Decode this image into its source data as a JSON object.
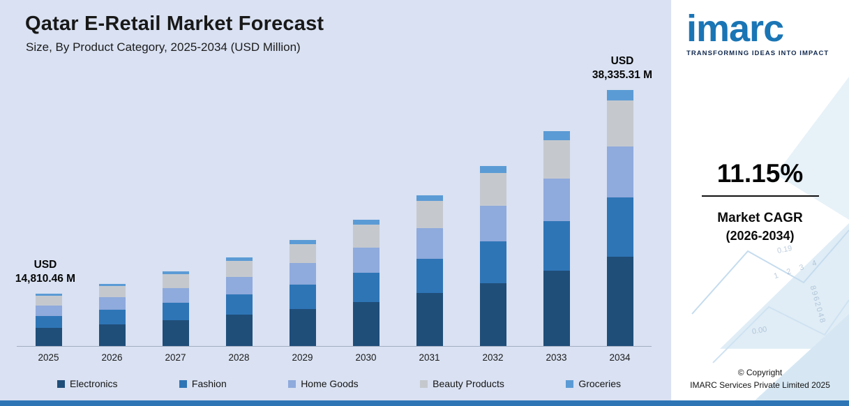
{
  "chart": {
    "title": "Qatar E-Retail Market Forecast",
    "subtitle": "Size, By Product Category, 2025-2034 (USD Million)",
    "annotations": {
      "first": {
        "line1": "USD",
        "line2": "14,810.46 M"
      },
      "last": {
        "line1": "USD",
        "line2": "38,335.31 M"
      }
    }
  },
  "chart_data": {
    "type": "bar",
    "stacked": true,
    "title": "Qatar E-Retail Market Forecast",
    "subtitle": "Size, By Product Category, 2025-2034 (USD Million)",
    "unit": "USD Million",
    "categories": [
      "2025",
      "2026",
      "2027",
      "2028",
      "2029",
      "2030",
      "2031",
      "2032",
      "2033",
      "2034"
    ],
    "series": [
      {
        "name": "Electronics",
        "color": "#1f4e79",
        "values": [
          5183.66,
          5761.64,
          6404.06,
          7118.11,
          7911.79,
          8793.95,
          9774.47,
          10864.4,
          12075.78,
          13417.36
        ]
      },
      {
        "name": "Fashion",
        "color": "#2e75b6",
        "values": [
          3406.41,
          3786.22,
          4208.38,
          4677.62,
          5199.17,
          5778.88,
          6423.23,
          7139.46,
          7935.51,
          8817.12
        ]
      },
      {
        "name": "Home Goods",
        "color": "#8faadc",
        "values": [
          2962.09,
          3292.37,
          3659.46,
          4067.49,
          4521.02,
          5025.11,
          5585.41,
          6208.23,
          6900.44,
          7667.06
        ]
      },
      {
        "name": "Beauty Products",
        "color": "#c5c9ce",
        "values": [
          2665.88,
          2963.13,
          3293.52,
          3660.74,
          4068.92,
          4522.6,
          5026.87,
          5587.41,
          6210.4,
          6900.36
        ]
      },
      {
        "name": "Groceries",
        "color": "#5b9bd5",
        "values": [
          592.42,
          658.47,
          731.89,
          813.5,
          904.2,
          1005.02,
          1117.08,
          1241.65,
          1380.09,
          1533.41
        ]
      }
    ],
    "totals": [
      14810.46,
      16461.83,
      18297.31,
      20337.46,
      22605.1,
      25125.56,
      27927.06,
      31041.15,
      34502.22,
      38335.31
    ],
    "labeled_totals": {
      "2025": "USD 14,810.46 M",
      "2034": "USD 38,335.31 M"
    },
    "xlabel": "",
    "ylabel": "USD Million",
    "ylim": [
      0,
      40000
    ],
    "grid": false,
    "legend_position": "bottom"
  },
  "side_panel": {
    "logo_text": "imarc",
    "tagline": "TRANSFORMING IDEAS INTO IMPACT",
    "cagr_value": "11.15%",
    "cagr_label_line1": "Market CAGR",
    "cagr_label_line2": "(2026-2034)",
    "copyright_line1": "© Copyright",
    "copyright_line2": "IMARC Services Private Limited 2025",
    "decor_numbers": [
      "0.19",
      "1 2 3 4",
      "8962048",
      "0.00"
    ]
  },
  "colors": {
    "chart_background": "#d9e1f2",
    "bottom_strip": "#2e75b6",
    "logo_blue": "#1a75b5"
  }
}
